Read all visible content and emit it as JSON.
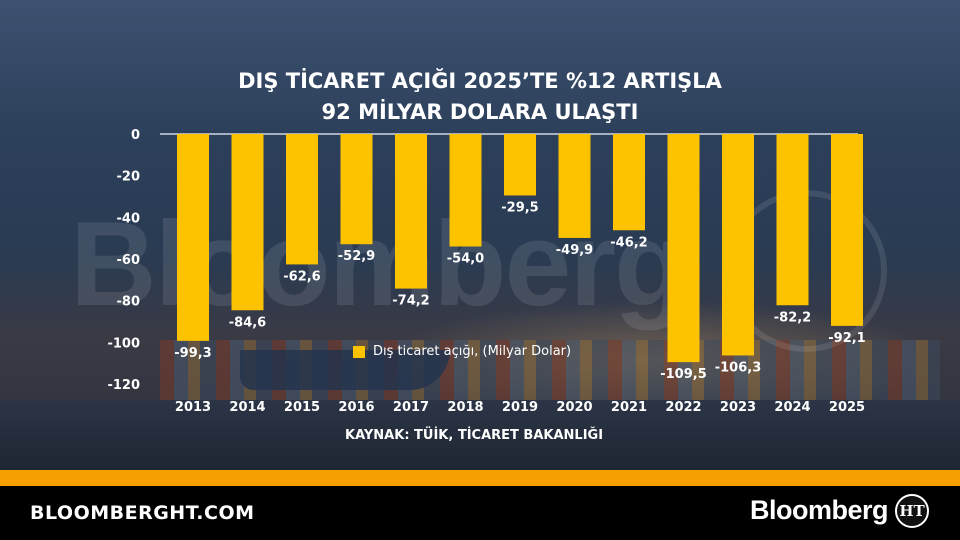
{
  "chart_data": {
    "type": "bar",
    "title_line1": "DIŞ TİCARET AÇIĞI 2025’TE %12 ARTIŞLA",
    "title_line2": "92 MİLYAR DOLARA ULAŞTI",
    "categories": [
      "2013",
      "2014",
      "2015",
      "2016",
      "2017",
      "2018",
      "2019",
      "2020",
      "2021",
      "2022",
      "2023",
      "2024",
      "2025"
    ],
    "values": [
      -99.3,
      -84.6,
      -62.6,
      -52.9,
      -74.2,
      -54.0,
      -29.5,
      -49.9,
      -46.2,
      -109.5,
      -106.3,
      -82.2,
      -92.1
    ],
    "value_labels": [
      "-99,3",
      "-84,6",
      "-62,6",
      "-52,9",
      "-74,2",
      "-54,0",
      "-29,5",
      "-49,9",
      "-46,2",
      "-109,5",
      "-106,3",
      "-82,2",
      "-92,1"
    ],
    "ylim": [
      -120,
      0
    ],
    "yticks": [
      0,
      -20,
      -40,
      -60,
      -80,
      -100,
      -120
    ],
    "legend": "Dış ticaret açığı, (Milyar Dolar)",
    "bar_color": "#fdc300"
  },
  "source": "KAYNAK: TÜİK, TİCARET BAKANLIĞI",
  "watermark": "Bloomberg",
  "footer": {
    "site": "BLOOMBERGHT.COM",
    "brand": "Bloomberg",
    "logo": "HT",
    "accent_color": "#f5a000"
  }
}
